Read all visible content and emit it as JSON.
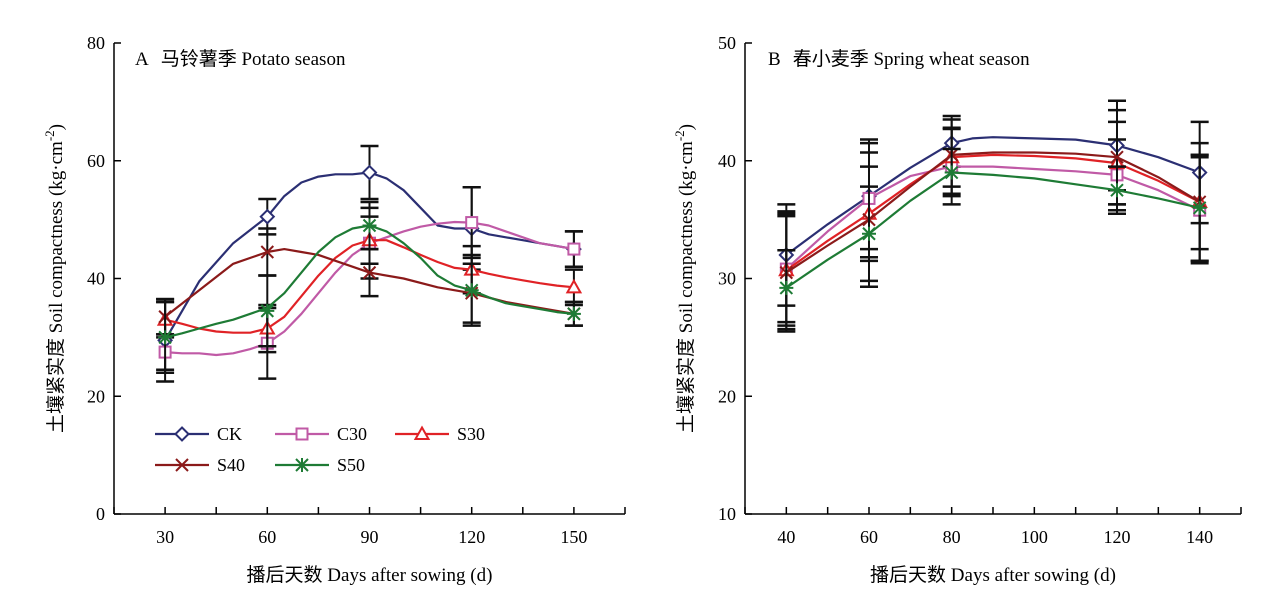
{
  "chart_data": [
    {
      "type": "line",
      "panel_letter": "A",
      "title": "马铃薯季 Potato season",
      "xlabel": "播后天数 Days after sowing (d)",
      "ylabel": "土壤紧实度 Soil compactness (kg·cm",
      "ylabel_sup": "-2",
      "ylabel_end": ")",
      "x": [
        30,
        60,
        90,
        120,
        150
      ],
      "xlim": [
        15,
        165
      ],
      "xticks": [
        30,
        60,
        90,
        120,
        150
      ],
      "ylim": [
        0,
        80
      ],
      "yticks": [
        0,
        20,
        40,
        60,
        80
      ],
      "legend_position": "lower-left",
      "series": [
        {
          "name": "CK",
          "marker": "diamond",
          "color": "#2b2f73",
          "values": [
            29.5,
            50.5,
            58,
            48.5,
            45
          ],
          "error": [
            7,
            3,
            4.5,
            7,
            3
          ],
          "smooth": [
            [
              30,
              29.5
            ],
            [
              40,
              39.5
            ],
            [
              50,
              46
            ],
            [
              60,
              50.5
            ],
            [
              65,
              54
            ],
            [
              70,
              56.3
            ],
            [
              75,
              57.3
            ],
            [
              80,
              57.7
            ],
            [
              85,
              57.7
            ],
            [
              90,
              58
            ],
            [
              95,
              57
            ],
            [
              100,
              55
            ],
            [
              105,
              52
            ],
            [
              110,
              49
            ],
            [
              115,
              48.5
            ],
            [
              120,
              48.5
            ],
            [
              125,
              47.5
            ],
            [
              130,
              47
            ],
            [
              135,
              46.5
            ],
            [
              140,
              46
            ],
            [
              145,
              45.5
            ],
            [
              150,
              45
            ]
          ]
        },
        {
          "name": "C30",
          "marker": "square",
          "color": "#c05aa6",
          "values": [
            27.5,
            29,
            46,
            49.5,
            45
          ],
          "error": [
            3,
            6,
            6,
            6,
            3
          ],
          "smooth": [
            [
              30,
              27.5
            ],
            [
              35,
              27.3
            ],
            [
              40,
              27.3
            ],
            [
              45,
              27
            ],
            [
              50,
              27.3
            ],
            [
              55,
              28
            ],
            [
              60,
              29
            ],
            [
              65,
              31
            ],
            [
              70,
              34
            ],
            [
              75,
              37.5
            ],
            [
              80,
              41
            ],
            [
              85,
              44
            ],
            [
              90,
              46
            ],
            [
              95,
              47
            ],
            [
              100,
              48
            ],
            [
              105,
              48.8
            ],
            [
              110,
              49.3
            ],
            [
              115,
              49.6
            ],
            [
              120,
              49.5
            ],
            [
              125,
              49
            ],
            [
              130,
              48
            ],
            [
              135,
              47
            ],
            [
              140,
              46
            ],
            [
              145,
              45.5
            ],
            [
              150,
              45
            ]
          ]
        },
        {
          "name": "S30",
          "marker": "triangle",
          "color": "#e02226",
          "values": [
            33,
            31.5,
            46.5,
            41.5,
            38.5
          ],
          "error": [
            3,
            4,
            4,
            4,
            3
          ],
          "smooth": [
            [
              30,
              33
            ],
            [
              35,
              32.3
            ],
            [
              40,
              31.5
            ],
            [
              45,
              31
            ],
            [
              50,
              30.8
            ],
            [
              55,
              30.8
            ],
            [
              60,
              31.5
            ],
            [
              65,
              33.5
            ],
            [
              70,
              37
            ],
            [
              75,
              40.5
            ],
            [
              80,
              43.5
            ],
            [
              85,
              45.6
            ],
            [
              90,
              46.5
            ],
            [
              95,
              46.5
            ],
            [
              100,
              45.3
            ],
            [
              105,
              44
            ],
            [
              110,
              42.8
            ],
            [
              115,
              41.8
            ],
            [
              120,
              41.5
            ],
            [
              125,
              40.8
            ],
            [
              130,
              40.2
            ],
            [
              135,
              39.7
            ],
            [
              140,
              39.2
            ],
            [
              145,
              38.8
            ],
            [
              150,
              38.5
            ]
          ]
        },
        {
          "name": "S40",
          "marker": "x",
          "color": "#8b1a1a",
          "values": [
            33.5,
            44.5,
            41,
            37.5,
            34
          ],
          "error": [
            3,
            4,
            4,
            5,
            2
          ],
          "smooth": [
            [
              30,
              33.5
            ],
            [
              40,
              38
            ],
            [
              50,
              42.5
            ],
            [
              60,
              44.5
            ],
            [
              65,
              45
            ],
            [
              70,
              44.5
            ],
            [
              75,
              44
            ],
            [
              80,
              43
            ],
            [
              85,
              42
            ],
            [
              90,
              41
            ],
            [
              100,
              40
            ],
            [
              110,
              38.5
            ],
            [
              120,
              37.5
            ],
            [
              130,
              36
            ],
            [
              140,
              35
            ],
            [
              150,
              34
            ]
          ]
        },
        {
          "name": "S50",
          "marker": "star",
          "color": "#1e7b35",
          "values": [
            30,
            34.5,
            49,
            38,
            34
          ],
          "error": [
            6,
            6,
            4,
            6,
            2
          ],
          "smooth": [
            [
              30,
              30
            ],
            [
              35,
              30.7
            ],
            [
              40,
              31.5
            ],
            [
              45,
              32.3
            ],
            [
              50,
              33
            ],
            [
              55,
              34
            ],
            [
              60,
              35
            ],
            [
              65,
              37.5
            ],
            [
              70,
              41
            ],
            [
              75,
              44.5
            ],
            [
              80,
              47
            ],
            [
              85,
              48.5
            ],
            [
              90,
              49
            ],
            [
              95,
              48
            ],
            [
              100,
              46
            ],
            [
              105,
              43.5
            ],
            [
              110,
              40.5
            ],
            [
              115,
              38.8
            ],
            [
              120,
              38
            ],
            [
              125,
              36.8
            ],
            [
              130,
              35.8
            ],
            [
              135,
              35.3
            ],
            [
              140,
              34.8
            ],
            [
              145,
              34.3
            ],
            [
              150,
              34
            ]
          ]
        }
      ]
    },
    {
      "type": "line",
      "panel_letter": "B",
      "title": "春小麦季 Spring wheat season",
      "xlabel": "播后天数 Days after sowing (d)",
      "ylabel": "土壤紧实度 Soil compactness (kg·cm",
      "ylabel_sup": "-2",
      "ylabel_end": ")",
      "x": [
        40,
        60,
        80,
        120,
        140
      ],
      "xlim": [
        30,
        150
      ],
      "xticks": [
        40,
        60,
        80,
        100,
        120,
        140
      ],
      "ylim": [
        10,
        50
      ],
      "yticks": [
        10,
        20,
        30,
        40,
        50
      ],
      "series": [
        {
          "name": "CK",
          "marker": "diamond",
          "color": "#2b2f73",
          "values": [
            32,
            37,
            41.5,
            41.3,
            39
          ],
          "error": [
            4.3,
            4.5,
            2,
            3.8,
            4.3
          ],
          "smooth": [
            [
              40,
              32
            ],
            [
              50,
              34.6
            ],
            [
              60,
              37
            ],
            [
              70,
              39.4
            ],
            [
              80,
              41.5
            ],
            [
              85,
              41.9
            ],
            [
              90,
              42
            ],
            [
              100,
              41.9
            ],
            [
              110,
              41.8
            ],
            [
              120,
              41.3
            ],
            [
              130,
              40.3
            ],
            [
              140,
              39
            ]
          ]
        },
        {
          "name": "C30",
          "marker": "square",
          "color": "#c05aa6",
          "values": [
            30.8,
            36.8,
            39.5,
            38.8,
            35.8
          ],
          "error": [
            4.5,
            5,
            3.2,
            3,
            4.5
          ],
          "smooth": [
            [
              40,
              30.8
            ],
            [
              50,
              34
            ],
            [
              60,
              36.8
            ],
            [
              70,
              38.7
            ],
            [
              80,
              39.5
            ],
            [
              90,
              39.5
            ],
            [
              100,
              39.3
            ],
            [
              110,
              39.1
            ],
            [
              120,
              38.8
            ],
            [
              130,
              37.5
            ],
            [
              140,
              35.8
            ]
          ]
        },
        {
          "name": "S30",
          "marker": "triangle",
          "color": "#e02226",
          "values": [
            30.7,
            35.5,
            40.3,
            39.8,
            36.5
          ],
          "error": [
            5,
            4,
            2.5,
            3.5,
            4
          ],
          "smooth": [
            [
              40,
              30.7
            ],
            [
              50,
              33.2
            ],
            [
              60,
              35.5
            ],
            [
              70,
              38
            ],
            [
              80,
              40.3
            ],
            [
              90,
              40.5
            ],
            [
              100,
              40.4
            ],
            [
              110,
              40.2
            ],
            [
              120,
              39.8
            ],
            [
              130,
              38.3
            ],
            [
              140,
              36.5
            ]
          ]
        },
        {
          "name": "S40",
          "marker": "x",
          "color": "#8b1a1a",
          "values": [
            30.5,
            35,
            40.5,
            40.3,
            36.5
          ],
          "error": [
            5,
            5.7,
            3.3,
            4,
            5
          ],
          "smooth": [
            [
              40,
              30.5
            ],
            [
              50,
              32.8
            ],
            [
              60,
              35
            ],
            [
              70,
              37.8
            ],
            [
              80,
              40.5
            ],
            [
              90,
              40.7
            ],
            [
              100,
              40.7
            ],
            [
              110,
              40.6
            ],
            [
              120,
              40.3
            ],
            [
              130,
              38.6
            ],
            [
              140,
              36.5
            ]
          ]
        },
        {
          "name": "S50",
          "marker": "star",
          "color": "#1e7b35",
          "values": [
            29.2,
            33.8,
            39,
            37.5,
            36
          ],
          "error": [
            3.2,
            4,
            2,
            2,
            4.5
          ],
          "smooth": [
            [
              40,
              29.2
            ],
            [
              50,
              31.6
            ],
            [
              60,
              33.8
            ],
            [
              70,
              36.6
            ],
            [
              80,
              39
            ],
            [
              90,
              38.8
            ],
            [
              100,
              38.5
            ],
            [
              110,
              38
            ],
            [
              120,
              37.5
            ],
            [
              130,
              36.8
            ],
            [
              140,
              36
            ]
          ]
        }
      ]
    }
  ]
}
